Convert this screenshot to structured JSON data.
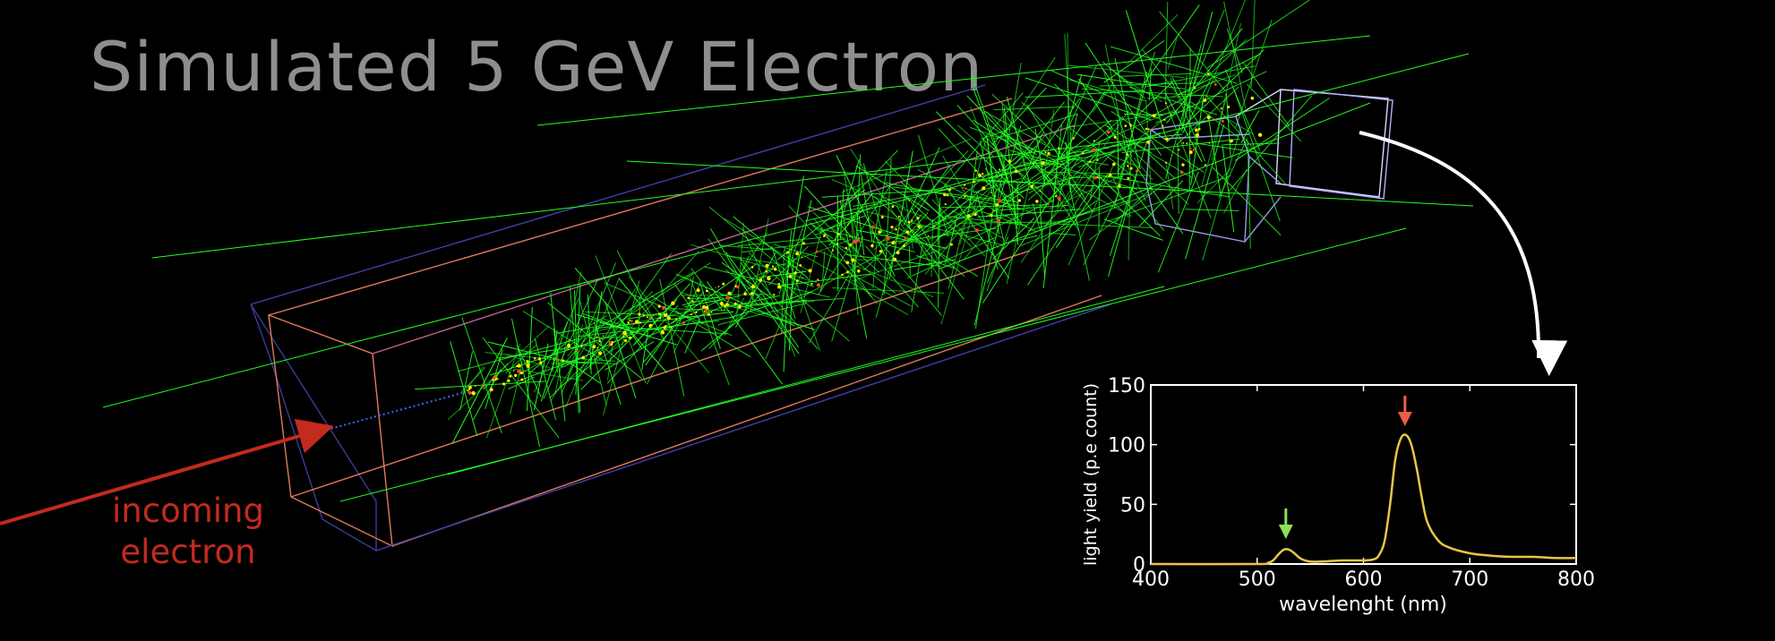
{
  "title": "Simulated 5 GeV Electron",
  "incoming_label": {
    "line1": "incoming",
    "line2": "electron"
  },
  "colors": {
    "background": "#000000",
    "title": "#8e8e8e",
    "incoming_arrow": "#c42a1d",
    "tracks": "#22ff22",
    "hits": "#ffee00",
    "spectrum_line": "#e8c547",
    "green_peak_arrow": "#8ee05a",
    "red_peak_arrow": "#f05a4a",
    "detector_box": "#e07a5a",
    "detector_frame": "#4a4adf"
  },
  "chart_data": {
    "type": "line",
    "xlabel": "wavelenght (nm)",
    "ylabel": "light yield (p.e count)",
    "xlim": [
      400,
      800
    ],
    "ylim": [
      0,
      150
    ],
    "xticks": [
      "400",
      "500",
      "600",
      "700",
      "800"
    ],
    "yticks": [
      "0",
      "50",
      "100",
      "150"
    ],
    "grid": false,
    "series": [
      {
        "x": [
          400,
          500,
          510,
          515,
          520,
          525,
          530,
          535,
          540,
          545,
          550,
          560,
          580,
          600,
          610,
          615,
          620,
          625,
          630,
          635,
          640,
          645,
          650,
          655,
          660,
          670,
          680,
          700,
          720,
          740,
          760,
          780,
          800
        ],
        "values": [
          0,
          0,
          1,
          3,
          8,
          12,
          12,
          9,
          5,
          3,
          2,
          2,
          3,
          3,
          4,
          8,
          20,
          50,
          88,
          105,
          108,
          100,
          80,
          55,
          35,
          20,
          14,
          9,
          7,
          6,
          6,
          5,
          5
        ]
      }
    ],
    "annotations": [
      {
        "type": "arrow",
        "x": 527,
        "color": "#8ee05a"
      },
      {
        "type": "arrow",
        "x": 639,
        "color": "#f05a4a"
      }
    ]
  }
}
